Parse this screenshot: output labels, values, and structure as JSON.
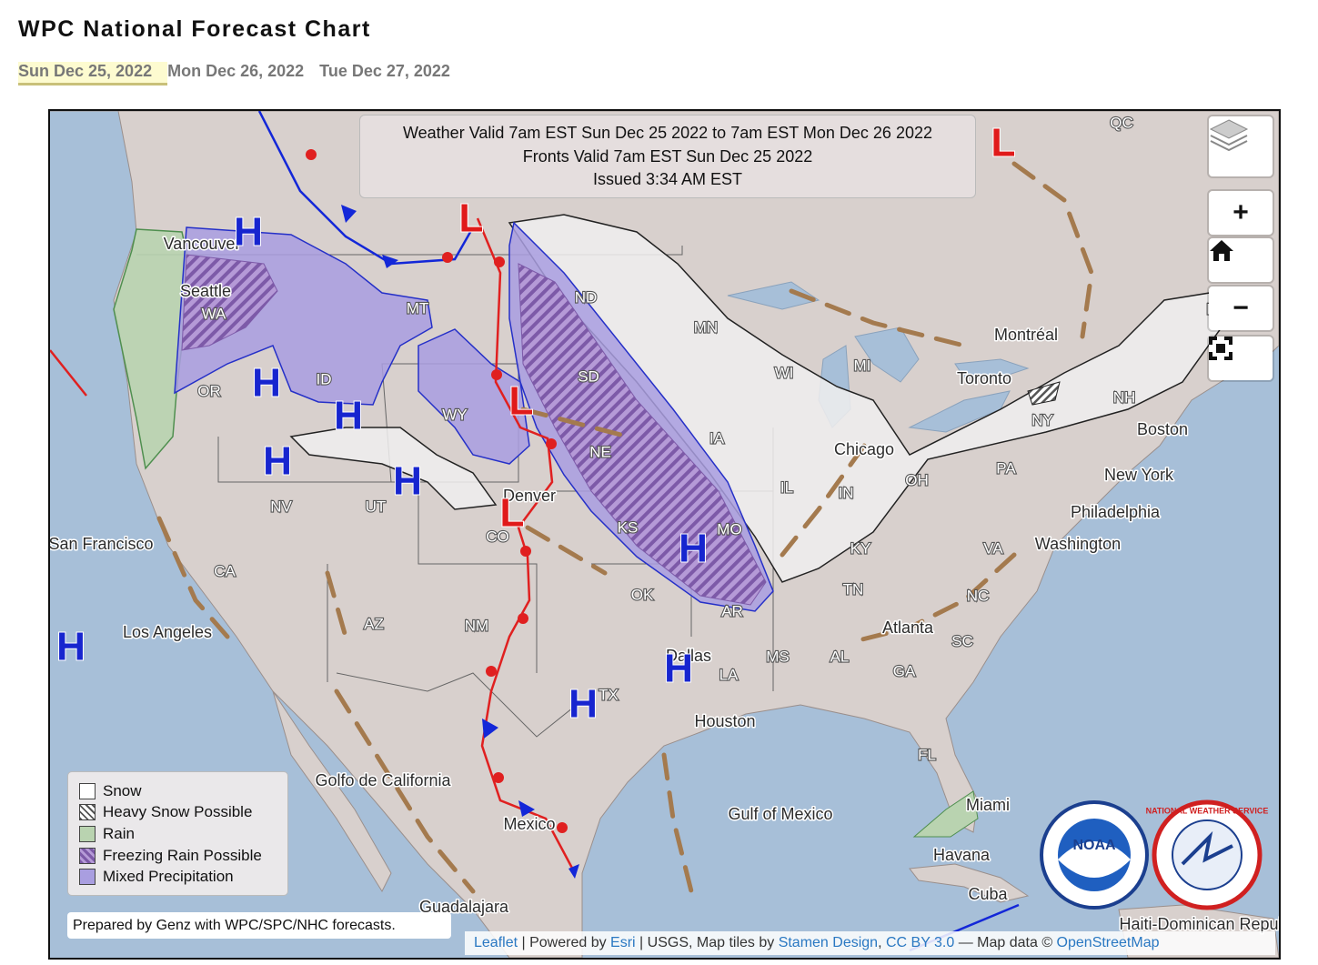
{
  "header": {
    "title": "WPC National Forecast Chart",
    "tabs": [
      "Sun Dec 25, 2022",
      "Mon Dec 26, 2022",
      "Tue Dec 27, 2022"
    ]
  },
  "map": {
    "info": [
      "Weather Valid 7am EST Sun Dec 25 2022 to 7am EST Mon Dec 26 2022",
      "Fronts Valid 7am EST Sun Dec 25 2022",
      "Issued 3:34 AM EST"
    ],
    "place_labels": [
      "QC",
      "NB",
      "Montréal",
      "Toronto",
      "NH",
      "Boston",
      "NY",
      "New York",
      "PA",
      "Philadelphia",
      "Washington",
      "VA",
      "OH",
      "Chicago",
      "IN",
      "IL",
      "WI",
      "MI",
      "MN",
      "ND",
      "SD",
      "NE",
      "IA",
      "KS",
      "MO",
      "KY",
      "TN",
      "NC",
      "SC",
      "GA",
      "AL",
      "MS",
      "AR",
      "LA",
      "OK",
      "TX",
      "Dallas",
      "Houston",
      "NM",
      "AZ",
      "CO",
      "UT",
      "NV",
      "CA",
      "WY",
      "ID",
      "MT",
      "OR",
      "WA",
      "Seattle",
      "Vancouver",
      "San Francisco",
      "Los Angeles",
      "Denver",
      "Atlanta",
      "FL",
      "Miami",
      "Havana",
      "Cuba",
      "Gulf of Mexico",
      "Golfo de California",
      "Mexico",
      "Guadalajara",
      "Haiti-Dominican Repul"
    ],
    "pressure_centers": [
      "H",
      "H",
      "H",
      "H",
      "H",
      "H",
      "H",
      "H",
      "H",
      "L",
      "L",
      "L",
      "L"
    ],
    "legend": [
      "Snow",
      "Heavy Snow Possible",
      "Rain",
      "Freezing Rain Possible",
      "Mixed Precipitation"
    ],
    "prepared_by": "Prepared by Genz with WPC/SPC/NHC forecasts.",
    "controls": [
      "+",
      "−"
    ],
    "logos": [
      "NOAA",
      "NATIONAL WEATHER SERVICE"
    ],
    "attribution": [
      "Leaflet",
      " | Powered by ",
      "Esri",
      " | USGS, Map tiles by ",
      "Stamen Design",
      ", ",
      "CC BY 3.0",
      " — Map data © ",
      "OpenStreetMap"
    ]
  }
}
